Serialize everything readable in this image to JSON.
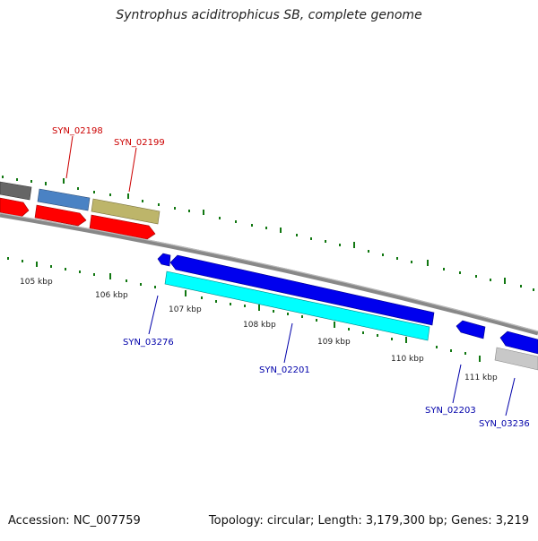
{
  "title": "Syntrophus aciditrophicus SB, complete genome",
  "accession": "Accession: NC_007759",
  "summary": "Topology: circular; Length: 3,179,300 bp; Genes: 3,219",
  "colors": {
    "forward_label": "#cc0000",
    "reverse_label": "#0000aa",
    "cds_red": "#ff0000",
    "cds_blue": "#0000ee",
    "cyan": "#00ffff",
    "steelblue": "#4a82c4",
    "khaki": "#bdb56a",
    "grey_dark": "#666666",
    "grey_light": "#c8c8c8",
    "backbone": "#888888",
    "tick": "#117711"
  },
  "ticks": [
    "105 kbp",
    "106 kbp",
    "107 kbp",
    "108 kbp",
    "109 kbp",
    "110 kbp",
    "111 kbp"
  ],
  "genes": {
    "syn_02198": "SYN_02198",
    "syn_02199": "SYN_02199",
    "syn_03276": "SYN_03276",
    "syn_02201": "SYN_02201",
    "syn_02203": "SYN_02203",
    "syn_03236": "SYN_03236"
  }
}
